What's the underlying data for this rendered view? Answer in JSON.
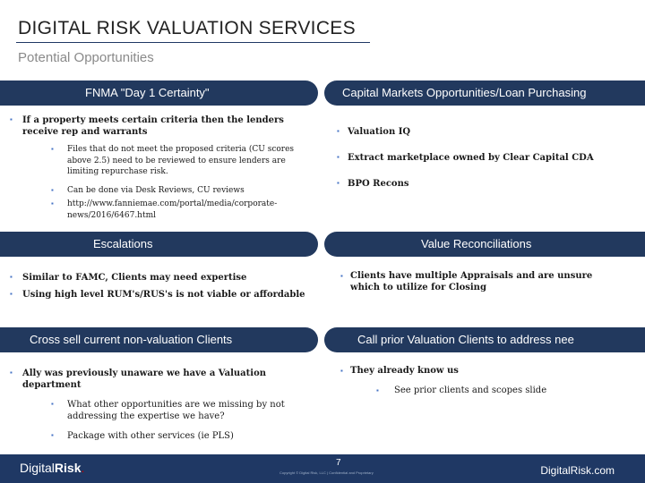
{
  "title": "DIGITAL RISK VALUATION SERVICES",
  "subtitle": "Potential Opportunities",
  "sections": {
    "fnma": {
      "header": "FNMA \"Day 1 Certainty\"",
      "items": [
        "If a property meets certain criteria then the lenders receive rep and warrants",
        "Files that do not meet the proposed criteria (CU scores above 2.5) need to be reviewed to ensure lenders are limiting repurchase risk.",
        "Can be done via Desk Reviews, CU reviews",
        "http://www.fanniemae.com/portal/media/corporate-news/2016/6467.html"
      ]
    },
    "capital": {
      "header": "Capital Markets Opportunities/Loan Purchasing",
      "items": [
        "Valuation IQ",
        "Extract marketplace owned by Clear Capital CDA",
        "BPO Recons"
      ]
    },
    "escalations": {
      "header": "Escalations",
      "items": [
        "Similar to FAMC, Clients may need expertise",
        "Using high level RUM's/RUS's is not viable or affordable"
      ]
    },
    "value_recon": {
      "header": "Value Reconciliations",
      "items": [
        "Clients have multiple Appraisals and are unsure which to utilize for Closing"
      ]
    },
    "cross_sell": {
      "header": "Cross sell current non-valuation Clients",
      "items": [
        "Ally was previously unaware we have a Valuation department",
        "What other opportunities are we missing by not addressing the expertise we have?",
        "Package with other services (ie PLS)"
      ]
    },
    "call_prior": {
      "header": "Call prior Valuation Clients to address nee",
      "items": [
        "They already know us",
        "See prior clients and scopes slide"
      ]
    }
  },
  "footer": {
    "logo_part1": "Digital",
    "logo_part2": "Risk",
    "logo_dot": ".",
    "page": "7",
    "copyright": "Copyright © Digital Risk, LLC | Confidential and Proprietary",
    "site": "DigitalRisk.com"
  },
  "colors": {
    "header_bg": "#22395e",
    "footer_bg": "#1f3864",
    "bullet": "#4472c4",
    "accent_red": "#c00000"
  }
}
